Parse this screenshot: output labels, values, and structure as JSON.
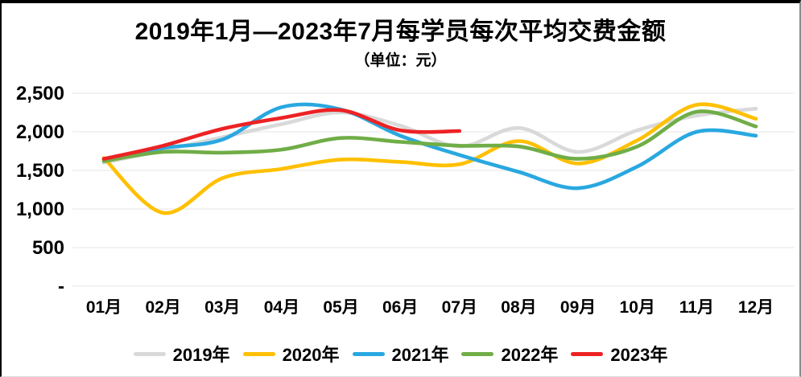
{
  "chart_data": {
    "type": "line",
    "title": "2019年1月—2023年7月每学员每次平均交费金额",
    "subtitle": "（单位：元）",
    "categories": [
      "01月",
      "02月",
      "03月",
      "04月",
      "05月",
      "06月",
      "07月",
      "08月",
      "09月",
      "10月",
      "11月",
      "12月"
    ],
    "xlabel": "",
    "ylabel": "",
    "ylim": [
      0,
      2500
    ],
    "grid": true,
    "gridline_color": "#e9e9e9",
    "legend_position": "bottom",
    "y_axis_ticks": [
      {
        "label": "2,500",
        "value": 2500
      },
      {
        "label": "2,000",
        "value": 2000
      },
      {
        "label": "1,500",
        "value": 1500
      },
      {
        "label": "1,000",
        "value": 1000
      },
      {
        "label": "500",
        "value": 500
      },
      {
        "label": "-",
        "value": 0
      }
    ],
    "series": [
      {
        "name": "2019年",
        "color": "#d9d9d9",
        "values": [
          1600,
          1760,
          1930,
          2100,
          2250,
          2080,
          1810,
          2050,
          1740,
          2020,
          2210,
          2300
        ]
      },
      {
        "name": "2020年",
        "color": "#ffc000",
        "values": [
          1660,
          950,
          1400,
          1520,
          1640,
          1610,
          1580,
          1880,
          1590,
          1890,
          2350,
          2170
        ]
      },
      {
        "name": "2021年",
        "color": "#29a8e0",
        "values": [
          1640,
          1790,
          1900,
          2320,
          2290,
          1950,
          1700,
          1480,
          1270,
          1550,
          2000,
          1950
        ]
      },
      {
        "name": "2022年",
        "color": "#70ad47",
        "values": [
          1620,
          1740,
          1730,
          1770,
          1920,
          1870,
          1820,
          1810,
          1650,
          1810,
          2260,
          2070
        ]
      },
      {
        "name": "2023年",
        "color": "#ed2224",
        "values": [
          1650,
          1820,
          2040,
          2180,
          2280,
          2020,
          2010
        ]
      }
    ]
  }
}
